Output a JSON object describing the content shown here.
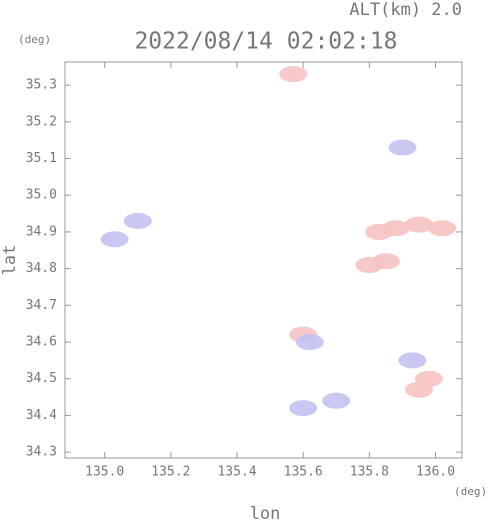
{
  "chart_data": {
    "type": "scatter",
    "title": "2022/08/14 02:02:18",
    "altitude": "ALT(km) 2.0",
    "y_unit": "(deg)",
    "x_unit": "(deg)",
    "xlabel": "lon",
    "ylabel": "lat",
    "xlim": [
      134.88,
      136.08
    ],
    "ylim": [
      34.284,
      35.363
    ],
    "xticks": [
      {
        "value": 135,
        "label": "135.0"
      },
      135.2,
      135.4,
      135.6,
      135.8,
      {
        "value": 136,
        "label": "136.0"
      }
    ],
    "yticks": [
      34.3,
      34.4,
      34.5,
      34.6,
      34.7,
      34.8,
      34.9,
      {
        "value": 35,
        "label": "35.0"
      },
      35.1,
      35.2,
      35.3
    ],
    "series": [
      {
        "color": "#f6c2c2",
        "x": [
          135.83,
          135.88,
          135.95,
          136.02,
          135.8,
          135.85,
          135.95,
          135.98,
          135.6,
          135.57
        ],
        "values": [
          34.9,
          34.91,
          34.92,
          34.91,
          34.81,
          34.82,
          34.47,
          34.5,
          34.62,
          35.33
        ]
      },
      {
        "color": "#c2c2f2",
        "x": [
          135.03,
          135.1,
          135.9,
          135.62,
          135.6,
          135.7,
          135.93
        ],
        "values": [
          34.88,
          34.93,
          35.13,
          34.6,
          34.42,
          34.44,
          34.55
        ]
      }
    ]
  }
}
